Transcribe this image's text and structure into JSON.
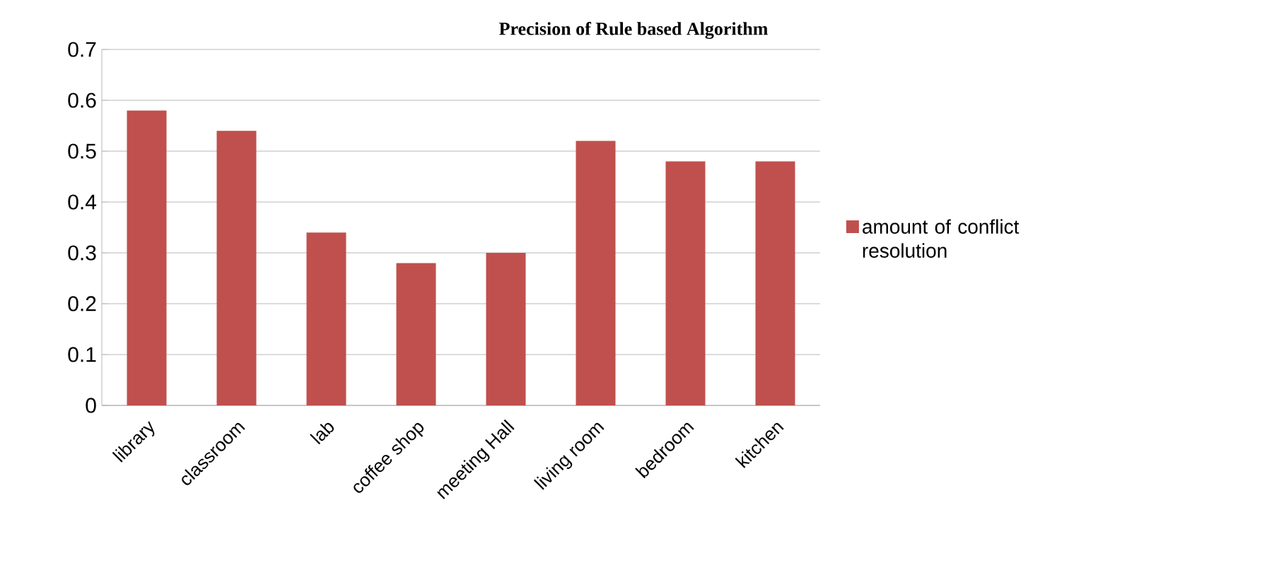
{
  "chart_data": {
    "type": "bar",
    "title": "Precision of Rule based Algorithm",
    "categories": [
      "library",
      "classroom",
      "lab",
      "coffee shop",
      "meeting Hall",
      "living room",
      "bedroom",
      "kitchen"
    ],
    "series": [
      {
        "name": "amount of conflict resolution",
        "color": "#c0504d",
        "values": [
          0.58,
          0.54,
          0.34,
          0.28,
          0.3,
          0.52,
          0.48,
          0.48
        ]
      }
    ],
    "ylim": [
      0,
      0.7
    ],
    "yticks": [
      0,
      0.1,
      0.2,
      0.3,
      0.4,
      0.5,
      0.6,
      0.7
    ],
    "grid": "y",
    "legend": "right"
  }
}
